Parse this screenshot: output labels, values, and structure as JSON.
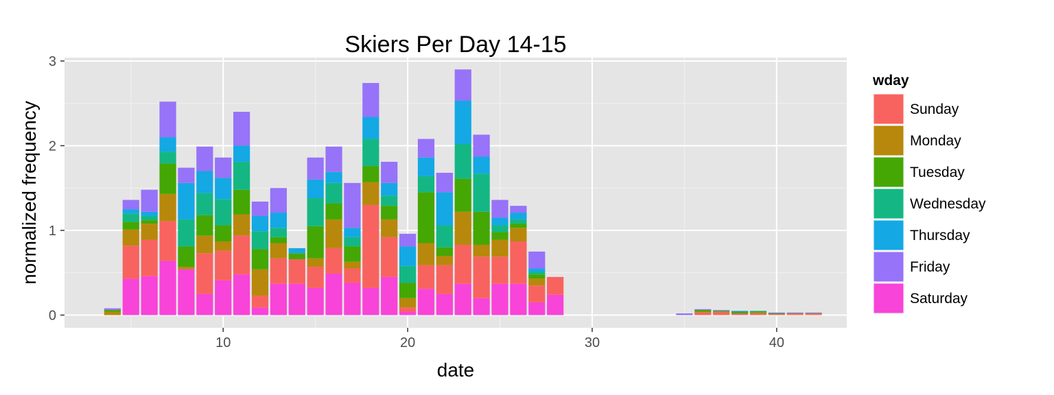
{
  "chart_data": {
    "type": "bar",
    "stacked": true,
    "title": "Skiers Per Day 14-15",
    "xlabel": "date",
    "ylabel": "normalized frequency",
    "xlim": [
      1.4,
      43.8
    ],
    "ylim": [
      -0.15,
      3.04
    ],
    "x_ticks": [
      10,
      20,
      30,
      40
    ],
    "y_ticks": [
      0,
      1,
      2,
      3
    ],
    "grid": true,
    "legend": {
      "title": "wday",
      "position": "right"
    },
    "series_colors": {
      "Saturday": "#f844d8",
      "Sunday": "#f8635f",
      "Monday": "#b7880b",
      "Tuesday": "#44a704",
      "Wednesday": "#14b784",
      "Thursday": "#14a8e4",
      "Friday": "#9673f8"
    },
    "stack_order": [
      "Saturday",
      "Sunday",
      "Monday",
      "Tuesday",
      "Wednesday",
      "Thursday",
      "Friday"
    ],
    "x": [
      4,
      5,
      6,
      7,
      8,
      9,
      10,
      11,
      12,
      13,
      14,
      15,
      16,
      17,
      18,
      19,
      20,
      21,
      22,
      23,
      24,
      25,
      26,
      27,
      28,
      35,
      36,
      37,
      38,
      39,
      40,
      41,
      42
    ],
    "series": [
      {
        "name": "Saturday",
        "values": [
          0,
          0.43,
          0.46,
          0.64,
          0.54,
          0.25,
          0.41,
          0.48,
          0.09,
          0.37,
          0.37,
          0.32,
          0.49,
          0.38,
          0.32,
          0.45,
          0.04,
          0.31,
          0.25,
          0.37,
          0.2,
          0.37,
          0.37,
          0.15,
          0.24,
          0,
          0,
          0,
          0,
          0,
          0,
          0,
          0
        ]
      },
      {
        "name": "Sunday",
        "values": [
          0,
          0.39,
          0.43,
          0.47,
          0,
          0.48,
          0.35,
          0.46,
          0.14,
          0.3,
          0.29,
          0.25,
          0.3,
          0.17,
          0.98,
          0.47,
          0.05,
          0.28,
          0.34,
          0.46,
          0.49,
          0.32,
          0.5,
          0.2,
          0.21,
          0,
          0.03,
          0.03,
          0.02,
          0.02,
          0.01,
          0.01,
          0.01
        ]
      },
      {
        "name": "Monday",
        "values": [
          0.04,
          0.19,
          0.19,
          0.32,
          0.03,
          0.21,
          0.11,
          0.25,
          0.31,
          0.18,
          0,
          0.1,
          0.34,
          0.08,
          0.27,
          0.21,
          0.11,
          0.26,
          0.11,
          0.39,
          0.14,
          0.2,
          0.16,
          0.08,
          0,
          0,
          0.01,
          0.01,
          0,
          0.01,
          0,
          0.01,
          0.01
        ]
      },
      {
        "name": "Tuesday",
        "values": [
          0.02,
          0.09,
          0.04,
          0.36,
          0.24,
          0.24,
          0.19,
          0.29,
          0.24,
          0.07,
          0.07,
          0.38,
          0.19,
          0.18,
          0.19,
          0.16,
          0.18,
          0.6,
          0.1,
          0.39,
          0.39,
          0.09,
          0.05,
          0.05,
          0,
          0,
          0.02,
          0.01,
          0.02,
          0.01,
          0.01,
          0,
          0
        ]
      },
      {
        "name": "Wednesday",
        "values": [
          0,
          0.1,
          0.05,
          0.14,
          0.32,
          0.26,
          0.31,
          0.33,
          0.21,
          0.11,
          0,
          0.33,
          0.24,
          0.11,
          0.32,
          0.12,
          0.2,
          0.19,
          0.26,
          0.41,
          0.45,
          0.08,
          0.05,
          0.03,
          0,
          0,
          0,
          0,
          0,
          0.01,
          0,
          0,
          0
        ]
      },
      {
        "name": "Thursday",
        "values": [
          0,
          0.05,
          0.05,
          0.17,
          0.43,
          0.26,
          0.25,
          0.19,
          0.18,
          0.18,
          0.06,
          0.22,
          0.13,
          0.11,
          0.26,
          0.15,
          0.23,
          0.22,
          0.39,
          0.51,
          0.2,
          0.09,
          0.08,
          0.04,
          0,
          0,
          0,
          0,
          0.01,
          0,
          0,
          0,
          0
        ]
      },
      {
        "name": "Friday",
        "values": [
          0.02,
          0.11,
          0.26,
          0.42,
          0.18,
          0.29,
          0.24,
          0.4,
          0.17,
          0.29,
          0,
          0.26,
          0.3,
          0.53,
          0.4,
          0.25,
          0.15,
          0.22,
          0.23,
          0.37,
          0.26,
          0.21,
          0.08,
          0.2,
          0,
          0.02,
          0.01,
          0.01,
          0,
          0,
          0.01,
          0.01,
          0.01
        ]
      }
    ],
    "legend_order": [
      "Sunday",
      "Monday",
      "Tuesday",
      "Wednesday",
      "Thursday",
      "Friday",
      "Saturday"
    ]
  }
}
